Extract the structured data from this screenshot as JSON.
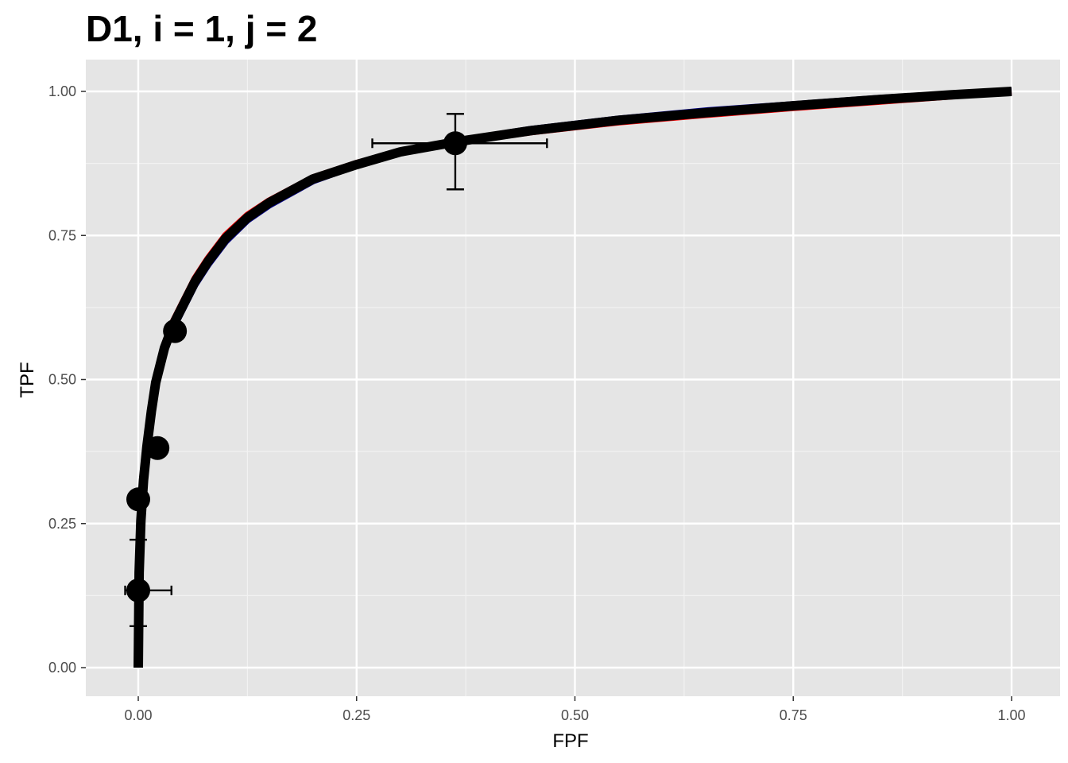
{
  "chart_data": {
    "type": "line",
    "title": "D1, i = 1, j = 2",
    "xlabel": "FPF",
    "ylabel": "TPF",
    "xlim": [
      -0.06,
      1.03
    ],
    "ylim": [
      -0.05,
      1.03
    ],
    "x_ticks": [
      0.0,
      0.25,
      0.5,
      0.75,
      1.0
    ],
    "y_ticks": [
      0.0,
      0.25,
      0.5,
      0.75,
      1.0
    ],
    "x_tick_labels": [
      "0.00",
      "0.25",
      "0.50",
      "0.75",
      "1.00"
    ],
    "y_tick_labels": [
      "0.00",
      "0.25",
      "0.50",
      "0.75",
      "1.00"
    ],
    "grid": true,
    "background": "#e5e5e5",
    "series": [
      {
        "color": "#ff0000",
        "x": [
          0.0,
          0.001,
          0.003,
          0.006,
          0.01,
          0.015,
          0.02,
          0.03,
          0.04,
          0.05,
          0.065,
          0.08,
          0.1,
          0.125,
          0.15,
          0.2,
          0.25,
          0.3,
          0.37,
          0.45,
          0.55,
          0.65,
          0.75,
          0.85,
          0.93,
          1.0
        ],
        "y": [
          0.0,
          0.17,
          0.26,
          0.33,
          0.39,
          0.45,
          0.5,
          0.56,
          0.6,
          0.63,
          0.675,
          0.71,
          0.75,
          0.785,
          0.81,
          0.85,
          0.875,
          0.895,
          0.913,
          0.93,
          0.947,
          0.96,
          0.972,
          0.983,
          0.992,
          1.0
        ]
      },
      {
        "color": "#00008b",
        "x": [
          0.0,
          0.001,
          0.003,
          0.006,
          0.01,
          0.015,
          0.02,
          0.03,
          0.04,
          0.05,
          0.065,
          0.08,
          0.1,
          0.125,
          0.15,
          0.2,
          0.25,
          0.3,
          0.37,
          0.45,
          0.55,
          0.65,
          0.75,
          0.85,
          0.93,
          1.0
        ],
        "y": [
          0.0,
          0.16,
          0.25,
          0.32,
          0.38,
          0.44,
          0.49,
          0.55,
          0.59,
          0.62,
          0.665,
          0.7,
          0.74,
          0.777,
          0.803,
          0.845,
          0.872,
          0.895,
          0.915,
          0.934,
          0.952,
          0.966,
          0.977,
          0.988,
          0.995,
          1.0
        ]
      },
      {
        "color": "#000000",
        "x": [
          0.0,
          0.001,
          0.003,
          0.006,
          0.01,
          0.015,
          0.02,
          0.03,
          0.04,
          0.05,
          0.065,
          0.08,
          0.1,
          0.125,
          0.15,
          0.2,
          0.25,
          0.3,
          0.37,
          0.45,
          0.55,
          0.65,
          0.75,
          0.85,
          0.93,
          1.0
        ],
        "y": [
          0.0,
          0.165,
          0.255,
          0.325,
          0.385,
          0.445,
          0.495,
          0.555,
          0.595,
          0.625,
          0.67,
          0.705,
          0.745,
          0.781,
          0.807,
          0.848,
          0.873,
          0.895,
          0.914,
          0.932,
          0.95,
          0.963,
          0.975,
          0.986,
          0.994,
          1.0
        ]
      }
    ],
    "points": [
      {
        "x": 0.0,
        "y": 0.134
      },
      {
        "x": 0.0,
        "y": 0.292
      },
      {
        "x": 0.022,
        "y": 0.381
      },
      {
        "x": 0.042,
        "y": 0.584
      },
      {
        "x": 0.363,
        "y": 0.91
      }
    ],
    "error_bars": [
      {
        "x": 0.0,
        "y": 0.134,
        "xmin": -0.015,
        "xmax": 0.038,
        "ymin": 0.072,
        "ymax": 0.222
      },
      {
        "x": 0.363,
        "y": 0.91,
        "xmin": 0.268,
        "xmax": 0.468,
        "ymin": 0.83,
        "ymax": 0.961
      }
    ]
  }
}
